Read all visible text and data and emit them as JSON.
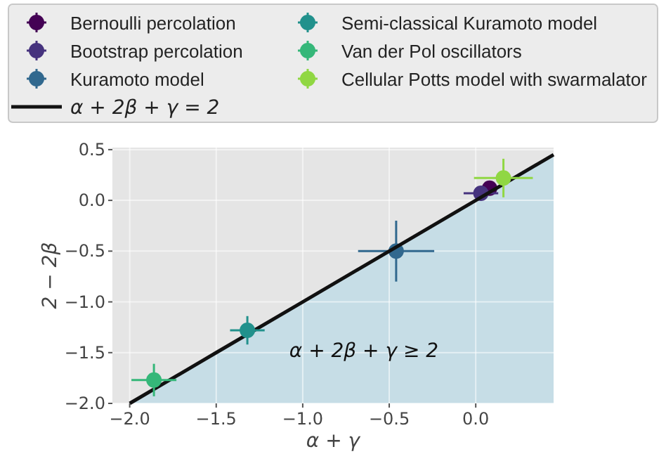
{
  "chart_data": {
    "type": "scatter",
    "xlabel": "α + γ",
    "ylabel": "2 − 2β",
    "xlim": [
      -2.1,
      0.45
    ],
    "ylim": [
      -2.0,
      0.52
    ],
    "xticks": [
      {
        "value": -2,
        "label": "−2.0"
      },
      {
        "value": -1.5,
        "label": "−1.5"
      },
      {
        "value": -1,
        "label": "−1.0"
      },
      {
        "value": -0.5,
        "label": "−0.5"
      },
      {
        "value": 0,
        "label": "0.0"
      }
    ],
    "yticks": [
      {
        "value": -2,
        "label": "−2.0"
      },
      {
        "value": -1.5,
        "label": "−1.5"
      },
      {
        "value": -1,
        "label": "−1.0"
      },
      {
        "value": -0.5,
        "label": "−0.5"
      },
      {
        "value": 0,
        "label": "0.0"
      },
      {
        "value": 0.5,
        "label": "0.5"
      }
    ],
    "grid": true,
    "legend": "top",
    "marker": "circle",
    "annotations": [
      "α + 2β + γ ≥ 2"
    ],
    "series": [
      {
        "name": "Bernoulli percolation",
        "color": "#440154",
        "x": [
          0.08
        ],
        "values": [
          0.12
        ],
        "xerrors": [
          0.04
        ],
        "errors": [
          0.03
        ]
      },
      {
        "name": "Bootstrap percolation",
        "color": "#46337e",
        "x": [
          0.03
        ],
        "values": [
          0.07
        ],
        "xerrors": [
          0.1
        ],
        "errors": [
          0.03
        ]
      },
      {
        "name": "Kuramoto model",
        "color": "#31688e",
        "x": [
          -0.46
        ],
        "values": [
          -0.5
        ],
        "xerrors": [
          0.22
        ],
        "errors": [
          0.3
        ]
      },
      {
        "type": "line",
        "name": "α + 2β + γ = 2",
        "color": "#111111",
        "marker": "none",
        "x": [
          -2.0,
          -1.5,
          -1,
          -0.5,
          0,
          0.45
        ],
        "values": [
          -2.0,
          -1.5,
          -1,
          -0.5,
          0,
          0.45
        ]
      },
      {
        "name": "Semi-classical Kuramoto model",
        "color": "#21918c",
        "x": [
          -1.32
        ],
        "values": [
          -1.28
        ],
        "xerrors": [
          0.1
        ],
        "errors": [
          0.14
        ]
      },
      {
        "name": "Van der Pol oscillators",
        "color": "#35b779",
        "x": [
          -1.86
        ],
        "values": [
          -1.77
        ],
        "xerrors": [
          0.13
        ],
        "errors": [
          0.16
        ]
      },
      {
        "name": "Cellular Potts model with swarmalator",
        "color": "#90d743",
        "x": [
          0.16
        ],
        "values": [
          0.22
        ],
        "xerrors": [
          0.17
        ],
        "errors": [
          0.19
        ]
      }
    ]
  }
}
